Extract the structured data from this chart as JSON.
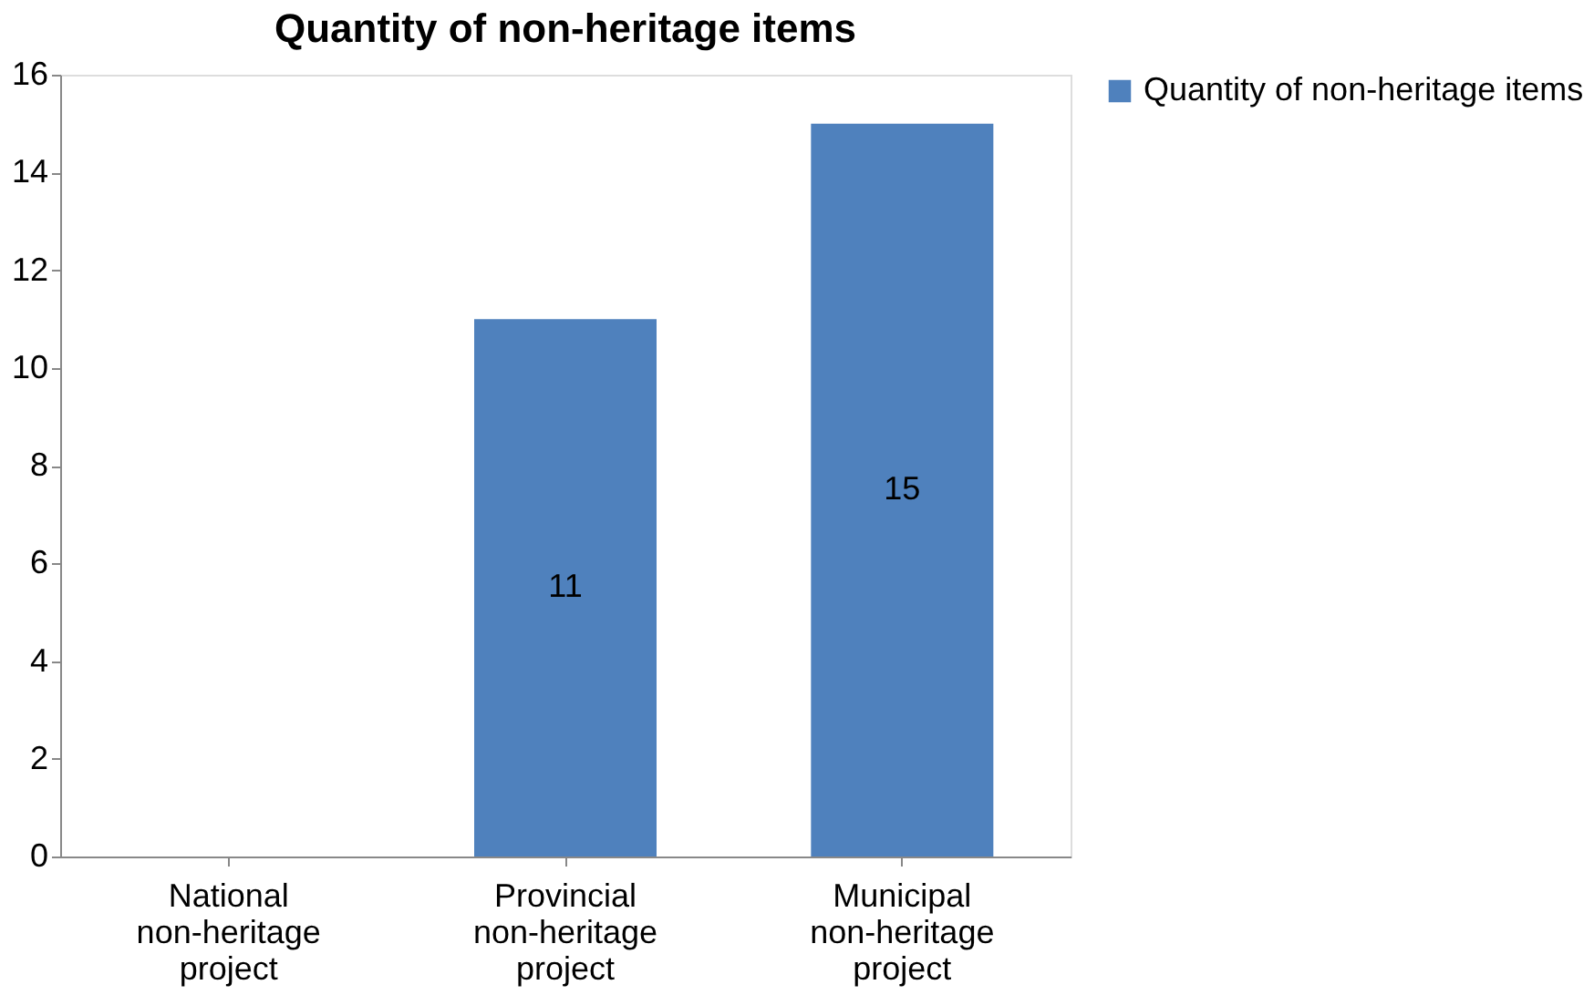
{
  "chart_data": {
    "type": "bar",
    "title": "Quantity of non-heritage items",
    "categories": [
      "National non-heritage project",
      "Provincial non-heritage project",
      "Municipal non-heritage project"
    ],
    "series": [
      {
        "name": "Quantity of non-heritage items",
        "color": "#4f81bd",
        "values": [
          0,
          11,
          15
        ],
        "value_labels": [
          null,
          "11",
          "15"
        ]
      }
    ],
    "ylim": [
      0,
      16
    ],
    "yticks": [
      0,
      2,
      4,
      6,
      8,
      10,
      12,
      14,
      16
    ],
    "grid": false,
    "legend": "right"
  }
}
